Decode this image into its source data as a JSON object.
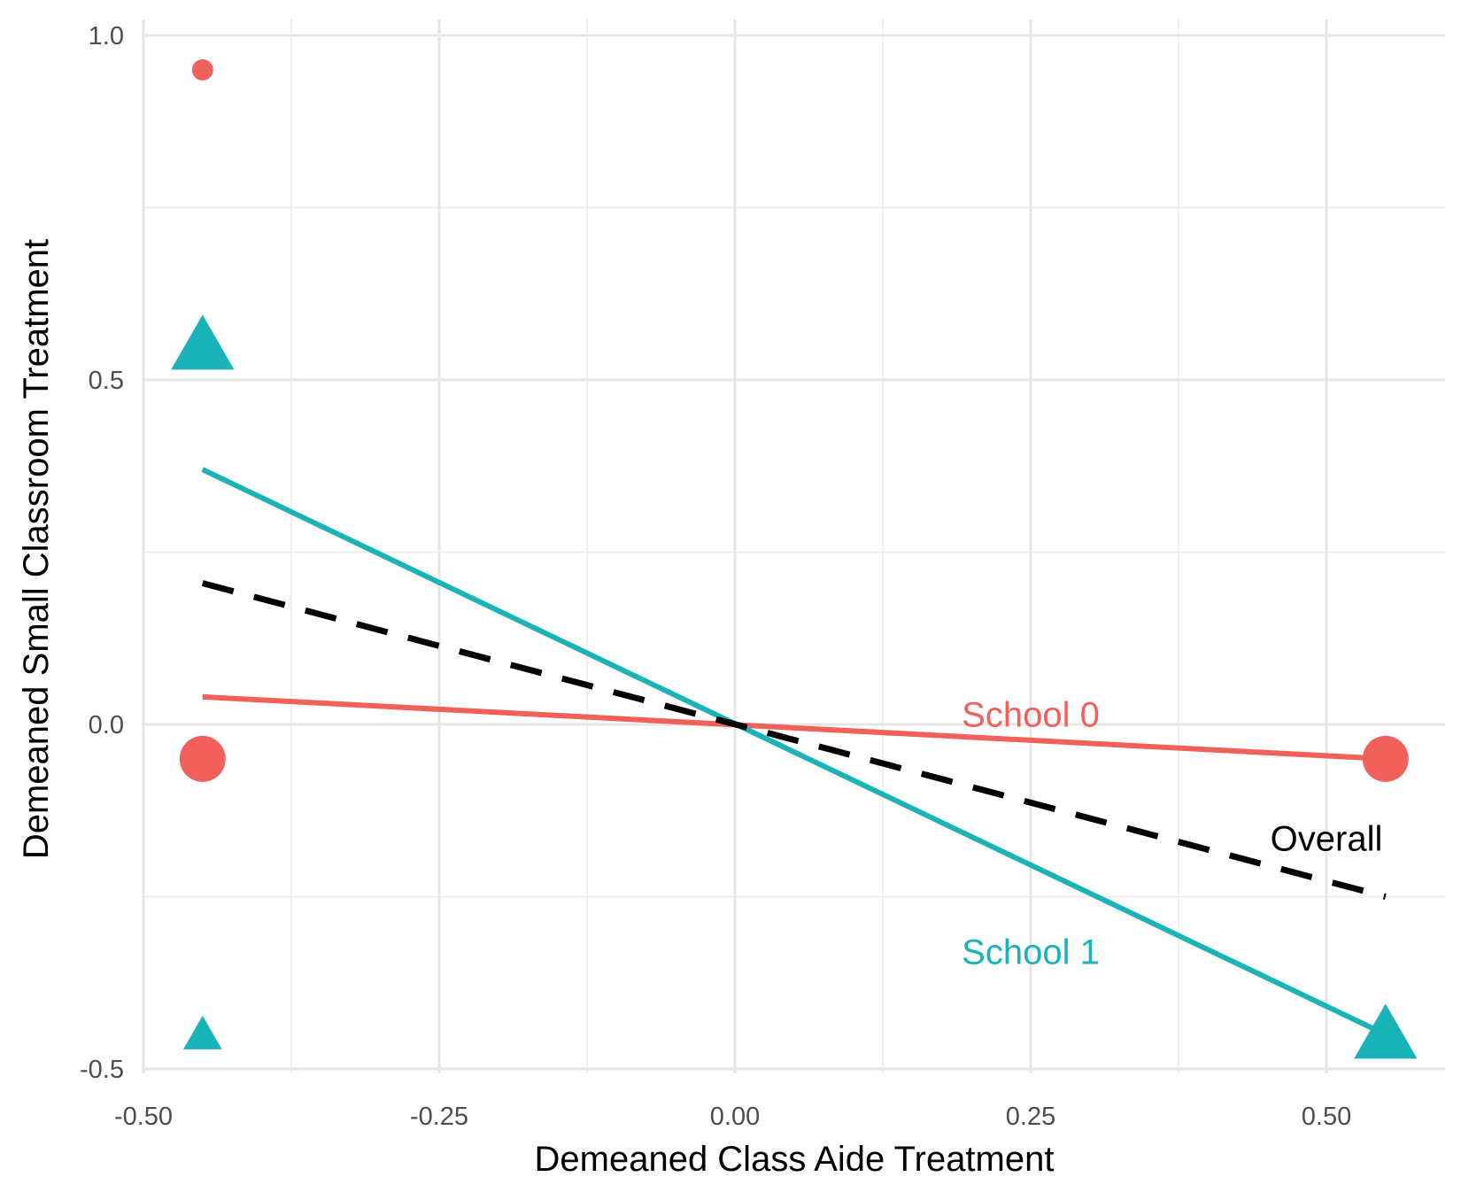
{
  "chart_data": {
    "type": "scatter",
    "title": "",
    "xlabel": "Demeaned Class Aide Treatment",
    "ylabel": "Demeaned Small Classroom Treatment",
    "xlim": [
      -0.5,
      0.6
    ],
    "ylim": [
      -0.5,
      1.0
    ],
    "x_ticks": [
      -0.5,
      -0.25,
      0.0,
      0.25,
      0.5
    ],
    "x_tick_labels": [
      "-0.50",
      "-0.25",
      "0.00",
      "0.25",
      "0.50"
    ],
    "y_ticks": [
      -0.5,
      0.0,
      0.5,
      1.0
    ],
    "y_tick_labels": [
      "-0.5",
      "0.0",
      "0.5",
      "1.0"
    ],
    "grid": true,
    "legend": "none",
    "series": [
      {
        "name": "School 0",
        "color": "#f2605c",
        "marker": "circle",
        "points": [
          {
            "x": -0.45,
            "y": 0.95,
            "size": "small"
          },
          {
            "x": -0.45,
            "y": -0.05,
            "size": "large"
          },
          {
            "x": 0.55,
            "y": -0.05,
            "size": "large"
          }
        ],
        "fit_line": {
          "x": [
            -0.45,
            0.55
          ],
          "y": [
            0.04,
            -0.05
          ]
        },
        "label": {
          "text": "School 0",
          "x": 0.25,
          "y": 0.015
        }
      },
      {
        "name": "School 1",
        "color": "#19b3b8",
        "marker": "triangle",
        "points": [
          {
            "x": -0.45,
            "y": 0.55,
            "size": "large"
          },
          {
            "x": -0.45,
            "y": -0.45,
            "size": "small"
          },
          {
            "x": 0.55,
            "y": -0.45,
            "size": "large"
          }
        ],
        "fit_line": {
          "x": [
            -0.45,
            0.55
          ],
          "y": [
            0.37,
            -0.45
          ]
        },
        "label": {
          "text": "School 1",
          "x": 0.25,
          "y": -0.33
        }
      },
      {
        "name": "Overall",
        "color": "#000000",
        "marker": "none",
        "dashed": true,
        "fit_line": {
          "x": [
            -0.45,
            0.55
          ],
          "y": [
            0.205,
            -0.25
          ]
        },
        "label": {
          "text": "Overall",
          "x": 0.5,
          "y": -0.165
        }
      }
    ]
  }
}
